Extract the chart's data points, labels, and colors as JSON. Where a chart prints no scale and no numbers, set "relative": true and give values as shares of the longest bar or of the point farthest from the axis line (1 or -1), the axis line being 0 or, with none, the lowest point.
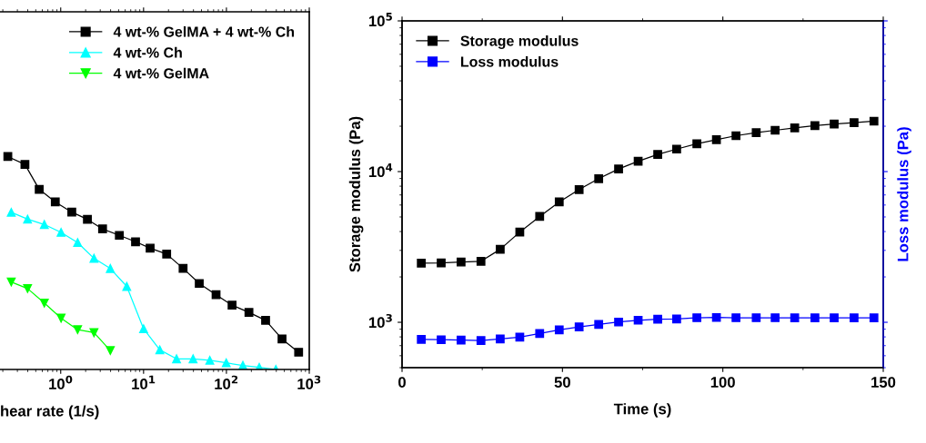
{
  "chart_data": [
    {
      "type": "line",
      "xlabel": "hear rate (1/s)",
      "log": "x",
      "relative": true,
      "xlim": [
        0.185,
        1000
      ],
      "xticks": [
        {
          "value": 1,
          "label": "10$^{0}$"
        },
        {
          "value": 10,
          "label": "10$^{1}$"
        },
        {
          "value": 100,
          "label": "10$^{2}$"
        },
        {
          "value": 1000,
          "label": "10$^{3}$"
        }
      ],
      "tick_labels": "x",
      "legend": "top right",
      "line_style": "solid",
      "series": [
        {
          "name": "4 wt-% GelMA + 4 wt-% Ch",
          "color": "#000000",
          "marker": "square",
          "x": [
            0.23,
            0.37,
            0.55,
            0.86,
            1.36,
            2.1,
            3.2,
            5.1,
            8.0,
            12,
            19,
            30,
            47,
            75,
            117,
            187,
            297,
            469,
            744
          ],
          "values": [
            1.0,
            0.963,
            0.846,
            0.787,
            0.739,
            0.705,
            0.66,
            0.63,
            0.6,
            0.57,
            0.542,
            0.475,
            0.404,
            0.351,
            0.302,
            0.268,
            0.231,
            0.143,
            0.081
          ]
        },
        {
          "name": "4 wt-% Ch",
          "color": "#00ffff",
          "marker": "triangle",
          "x": [
            0.253,
            0.398,
            0.634,
            1.01,
            1.6,
            2.52,
            3.97,
            6.27,
            10.0,
            15.7,
            25,
            39.6,
            63,
            99.5,
            158,
            249,
            395
          ],
          "values": [
            0.738,
            0.706,
            0.681,
            0.644,
            0.596,
            0.522,
            0.474,
            0.39,
            0.191,
            0.092,
            0.05,
            0.05,
            0.043,
            0.031,
            0.019,
            0.01,
            0.0
          ]
        },
        {
          "name": "4 wt-% GelMA",
          "color": "#00ff00",
          "marker": "triangle_down",
          "x": [
            0.253,
            0.398,
            0.634,
            1.01,
            1.6,
            2.52,
            3.97
          ],
          "values": [
            0.411,
            0.38,
            0.312,
            0.241,
            0.187,
            0.173,
            0.089
          ]
        }
      ]
    },
    {
      "type": "line",
      "xlabel": "Time (s)",
      "ylabel": "Storage modulus (Pa)",
      "y2label": "Loss modulus (Pa)",
      "log": "y",
      "xlim": [
        0,
        150
      ],
      "xticks": [
        0,
        50,
        100,
        150
      ],
      "ylim": [
        500,
        100000
      ],
      "yticks": [
        {
          "value": 1000,
          "label": "10$^{3}$"
        },
        {
          "value": 10000,
          "label": "10$^{4}$"
        },
        {
          "value": 100000,
          "label": "10$^{5}$"
        }
      ],
      "legend": "top left",
      "marker": "square",
      "line_style": "solid",
      "x": [
        6.0,
        12.2,
        18.4,
        24.6,
        30.6,
        36.7,
        42.9,
        49.0,
        55.2,
        61.3,
        67.5,
        73.6,
        79.7,
        85.6,
        91.9,
        98.0,
        104.1,
        110.4,
        116.3,
        122.4,
        128.7,
        134.7,
        140.9,
        147.1
      ],
      "series": [
        {
          "name": "Storage modulus",
          "color": "#000000",
          "values": [
            2470,
            2480,
            2510,
            2540,
            3050,
            3970,
            5040,
            6290,
            7600,
            8980,
            10400,
            11700,
            13000,
            14100,
            15300,
            16300,
            17300,
            18100,
            18800,
            19500,
            20200,
            20700,
            21100,
            21600
          ]
        },
        {
          "name": "Loss modulus",
          "color": "#0000ff",
          "values": [
            771,
            766,
            763,
            757,
            775,
            797,
            842,
            890,
            933,
            967,
            1004,
            1032,
            1047,
            1051,
            1072,
            1076,
            1072,
            1072,
            1072,
            1070,
            1070,
            1070,
            1070,
            1070
          ]
        }
      ]
    }
  ]
}
